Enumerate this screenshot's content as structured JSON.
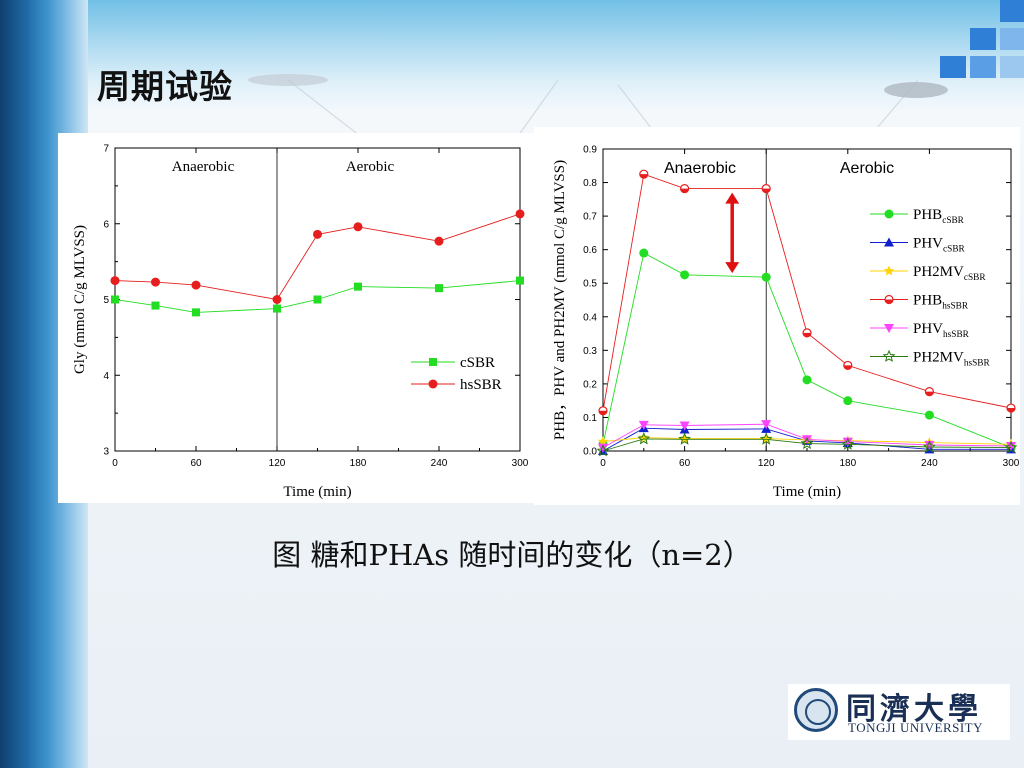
{
  "slide": {
    "title": "周期试验",
    "caption": "图 糖和PHAs 随时间的变化（n=2）"
  },
  "logo": {
    "name_cn": "同濟大學",
    "name_en": "TONGJI UNIVERSITY"
  },
  "colors": {
    "red": "#e61e1e",
    "green": "#22dd22",
    "blue": "#1020d0",
    "yellow": "#ffd400",
    "magenta": "#ff44ff",
    "darkgreen": "#2a7a10",
    "arrow": "#e01010"
  },
  "chart_data": [
    {
      "type": "line",
      "title": "",
      "xlabel": "Time (min)",
      "ylabel": "Gly (mmol C/g MLVSS)",
      "xlim": [
        0,
        300
      ],
      "ylim": [
        3,
        7
      ],
      "xticks": [
        0,
        60,
        120,
        180,
        240,
        300
      ],
      "yticks": [
        3,
        4,
        5,
        6,
        7
      ],
      "phase_divider_x": 120,
      "phase_labels": [
        "Anaerobic",
        "Aerobic"
      ],
      "legend_position": "right-middle",
      "grid": false,
      "series": [
        {
          "name": "cSBR",
          "marker": "square",
          "color": "#22dd22",
          "x": [
            0,
            30,
            60,
            120,
            150,
            180,
            240,
            300
          ],
          "y": [
            5.0,
            4.92,
            4.83,
            4.88,
            5.0,
            5.17,
            5.15,
            5.25
          ]
        },
        {
          "name": "hsSBR",
          "marker": "circle",
          "color": "#e61e1e",
          "x": [
            0,
            30,
            60,
            120,
            150,
            180,
            240,
            300
          ],
          "y": [
            5.25,
            5.23,
            5.19,
            5.0,
            5.86,
            5.96,
            5.77,
            6.13
          ]
        }
      ]
    },
    {
      "type": "line",
      "title": "",
      "xlabel": "Time (min)",
      "ylabel": "PHB，PHV and PH2MV (mmol C/g MLVSS)",
      "xlim": [
        0,
        300
      ],
      "ylim": [
        0.0,
        0.9
      ],
      "xticks": [
        0,
        60,
        120,
        180,
        240,
        300
      ],
      "yticks": [
        0.0,
        0.1,
        0.2,
        0.3,
        0.4,
        0.5,
        0.6,
        0.7,
        0.8,
        0.9
      ],
      "phase_divider_x": 120,
      "phase_labels": [
        "Anaerobic",
        "Aerobic"
      ],
      "legend_position": "right",
      "grid": false,
      "annotation": "double-headed arrow between PHB curves near x=95 (y 0.52 to 0.77)",
      "series": [
        {
          "name": "PHB",
          "name_sub": "cSBR",
          "marker": "circle",
          "color": "#22dd22",
          "x": [
            0,
            30,
            60,
            120,
            150,
            180,
            240,
            300
          ],
          "y": [
            0.02,
            0.59,
            0.525,
            0.518,
            0.212,
            0.15,
            0.107,
            0.01
          ]
        },
        {
          "name": "PHV",
          "name_sub": "cSBR",
          "marker": "triangle-up",
          "color": "#1020d0",
          "x": [
            0,
            30,
            60,
            120,
            150,
            180,
            240,
            300
          ],
          "y": [
            0.0,
            0.068,
            0.064,
            0.066,
            0.03,
            0.024,
            0.005,
            0.005
          ]
        },
        {
          "name": "PH2MV",
          "name_sub": "cSBR",
          "marker": "star",
          "color": "#ffd400",
          "x": [
            0,
            30,
            60,
            120,
            150,
            180,
            240,
            300
          ],
          "y": [
            0.028,
            0.04,
            0.037,
            0.037,
            0.033,
            0.031,
            0.025,
            0.02
          ]
        },
        {
          "name": "PHB",
          "name_sub": "hsSBR",
          "marker": "half-circle",
          "color": "#e61e1e",
          "x": [
            0,
            30,
            60,
            120,
            150,
            180,
            240,
            300
          ],
          "y": [
            0.12,
            0.825,
            0.782,
            0.782,
            0.352,
            0.255,
            0.177,
            0.128
          ]
        },
        {
          "name": "PHV",
          "name_sub": "hsSBR",
          "marker": "triangle-down",
          "color": "#ff44ff",
          "x": [
            0,
            30,
            60,
            120,
            150,
            180,
            240,
            300
          ],
          "y": [
            0.01,
            0.078,
            0.076,
            0.08,
            0.035,
            0.028,
            0.018,
            0.015
          ]
        },
        {
          "name": "PH2MV",
          "name_sub": "hsSBR",
          "marker": "star-open",
          "color": "#2a7a10",
          "x": [
            0,
            30,
            60,
            120,
            150,
            180,
            240,
            300
          ],
          "y": [
            0.0,
            0.036,
            0.035,
            0.035,
            0.022,
            0.02,
            0.012,
            0.01
          ]
        }
      ]
    }
  ]
}
